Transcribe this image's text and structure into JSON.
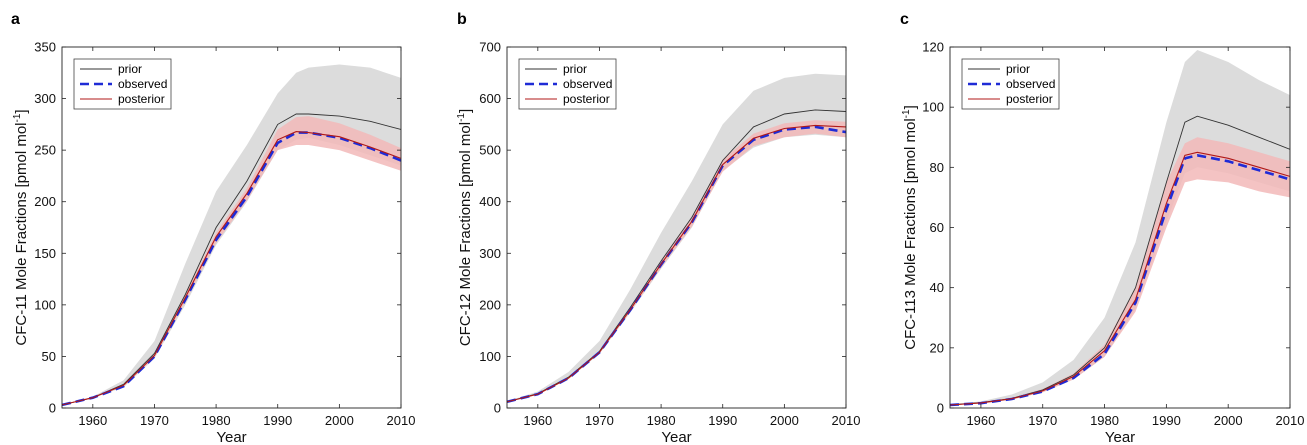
{
  "chart_data": [
    {
      "type": "line",
      "panel_label": "a",
      "xlabel": "Year",
      "ylabel_text": "CFC-11 Mole Fractions  [pmol mol",
      "ylabel_sup": "-1",
      "ylabel_end": "]",
      "xlim": [
        1955,
        2010
      ],
      "ylim": [
        0,
        350
      ],
      "xticks": [
        1960,
        1970,
        1980,
        1990,
        2000,
        2010
      ],
      "yticks": [
        0,
        50,
        100,
        150,
        200,
        250,
        300,
        350
      ],
      "legend": [
        "prior",
        "observed",
        "posterior"
      ],
      "legend_position": "top-left",
      "grid": false,
      "colors": {
        "prior": "#333333",
        "observed": "#1f2bd6",
        "posterior": "#b01818",
        "prior_band": "#dcdcdc",
        "posterior_band": "#f2b8b8"
      },
      "x": [
        1955,
        1960,
        1965,
        1970,
        1975,
        1980,
        1985,
        1990,
        1993,
        1995,
        2000,
        2005,
        2010
      ],
      "series": [
        {
          "name": "prior",
          "values": [
            3,
            10,
            23,
            53,
            110,
            175,
            220,
            275,
            285,
            285,
            283,
            278,
            270
          ]
        },
        {
          "name": "observed",
          "values": [
            3,
            10,
            21,
            50,
            105,
            163,
            205,
            257,
            267,
            267,
            262,
            252,
            240
          ]
        },
        {
          "name": "posterior",
          "values": [
            3,
            10,
            22,
            51,
            107,
            166,
            208,
            260,
            268,
            267,
            263,
            253,
            242
          ]
        }
      ],
      "prior_band": {
        "lower": [
          3,
          10,
          20,
          48,
          100,
          158,
          200,
          250,
          260,
          262,
          255,
          245,
          235
        ],
        "upper": [
          3,
          11,
          27,
          65,
          140,
          210,
          255,
          305,
          325,
          330,
          333,
          330,
          320
        ]
      },
      "posterior_band": {
        "lower": [
          3,
          10,
          21,
          49,
          103,
          160,
          201,
          250,
          255,
          255,
          250,
          240,
          230
        ],
        "upper": [
          3,
          11,
          23,
          53,
          110,
          170,
          213,
          270,
          282,
          283,
          276,
          265,
          252
        ]
      }
    },
    {
      "type": "line",
      "panel_label": "b",
      "xlabel": "Year",
      "ylabel_text": "CFC-12 Mole Fractions  [pmol mol",
      "ylabel_sup": "-1",
      "ylabel_end": "]",
      "xlim": [
        1955,
        2010
      ],
      "ylim": [
        0,
        700
      ],
      "xticks": [
        1960,
        1970,
        1980,
        1990,
        2000,
        2010
      ],
      "yticks": [
        0,
        100,
        200,
        300,
        400,
        500,
        600,
        700
      ],
      "legend": [
        "prior",
        "observed",
        "posterior"
      ],
      "legend_position": "top-left",
      "grid": false,
      "colors": {
        "prior": "#333333",
        "observed": "#1f2bd6",
        "posterior": "#b01818",
        "prior_band": "#dcdcdc",
        "posterior_band": "#f2b8b8"
      },
      "x": [
        1955,
        1960,
        1965,
        1970,
        1975,
        1980,
        1985,
        1990,
        1995,
        2000,
        2005,
        2010
      ],
      "series": [
        {
          "name": "prior",
          "values": [
            12,
            28,
            60,
            110,
            195,
            285,
            370,
            480,
            545,
            570,
            578,
            575
          ]
        },
        {
          "name": "observed",
          "values": [
            12,
            27,
            58,
            108,
            190,
            278,
            360,
            470,
            520,
            540,
            545,
            535
          ]
        },
        {
          "name": "posterior",
          "values": [
            12,
            27,
            58,
            108,
            191,
            279,
            362,
            472,
            523,
            542,
            548,
            545
          ]
        }
      ],
      "prior_band": {
        "lower": [
          12,
          26,
          56,
          105,
          185,
          270,
          350,
          460,
          505,
          525,
          530,
          525
        ],
        "upper": [
          13,
          32,
          70,
          130,
          230,
          340,
          440,
          550,
          615,
          640,
          648,
          645
        ]
      },
      "posterior_band": {
        "lower": [
          12,
          26,
          57,
          106,
          187,
          272,
          352,
          458,
          508,
          525,
          532,
          525
        ],
        "upper": [
          12,
          28,
          60,
          110,
          196,
          286,
          370,
          482,
          532,
          552,
          558,
          555
        ]
      }
    },
    {
      "type": "line",
      "panel_label": "c",
      "xlabel": "Year",
      "ylabel_text": "CFC-113 Mole Fractions  [pmol mol",
      "ylabel_sup": "-1",
      "ylabel_end": "]",
      "xlim": [
        1955,
        2010
      ],
      "ylim": [
        0,
        120
      ],
      "xticks": [
        1960,
        1970,
        1980,
        1990,
        2000,
        2010
      ],
      "yticks": [
        0,
        20,
        40,
        60,
        80,
        100,
        120
      ],
      "legend": [
        "prior",
        "observed",
        "posterior"
      ],
      "legend_position": "top-left",
      "grid": false,
      "colors": {
        "prior": "#333333",
        "observed": "#1f2bd6",
        "posterior": "#b01818",
        "prior_band": "#dcdcdc",
        "posterior_band": "#f2b8b8"
      },
      "x": [
        1955,
        1960,
        1965,
        1970,
        1975,
        1980,
        1985,
        1990,
        1993,
        1995,
        2000,
        2005,
        2010
      ],
      "series": [
        {
          "name": "prior",
          "values": [
            1,
            1.8,
            3.2,
            6,
            11,
            20,
            40,
            75,
            95,
            97,
            94,
            90,
            86
          ]
        },
        {
          "name": "observed",
          "values": [
            1,
            1.6,
            3,
            5.5,
            10,
            18,
            35,
            66,
            83,
            84,
            82,
            79,
            76
          ]
        },
        {
          "name": "posterior",
          "values": [
            1,
            1.7,
            3.1,
            5.7,
            10.5,
            19,
            36,
            68,
            84,
            85,
            83,
            80,
            77
          ]
        }
      ],
      "prior_band": {
        "lower": [
          1,
          1.5,
          2.8,
          5.2,
          9.5,
          17,
          33,
          62,
          78,
          80,
          78,
          75,
          72
        ],
        "upper": [
          1.2,
          2.2,
          4.5,
          8.5,
          16,
          30,
          55,
          95,
          115,
          119,
          115,
          109,
          104
        ]
      },
      "posterior_band": {
        "lower": [
          1,
          1.5,
          2.8,
          5.2,
          9.5,
          17,
          32,
          60,
          75,
          76,
          75,
          72,
          70
        ],
        "upper": [
          1.1,
          1.9,
          3.4,
          6.3,
          11.5,
          21,
          40,
          75,
          88,
          90,
          88,
          85,
          82
        ]
      }
    }
  ]
}
